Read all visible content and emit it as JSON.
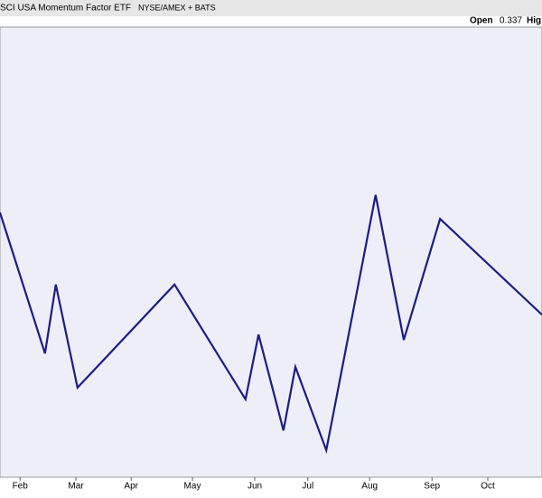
{
  "header": {
    "title": "SCI USA Momentum Factor ETF",
    "exchange": "NYSE/AMEX + BATS",
    "open_label": "Open",
    "open_value": "0.337",
    "high_label": "Hig"
  },
  "chart_data": {
    "type": "line",
    "x": [
      0,
      8.3,
      10.3,
      14.3,
      32.2,
      45.3,
      47.7,
      52.3,
      54.5,
      60.2,
      69.3,
      74.5,
      81.2,
      100
    ],
    "series": [
      {
        "color": "#1c1c84",
        "values": [
          58.8,
          27.5,
          42.8,
          19.9,
          42.8,
          17.3,
          31.7,
          10.4,
          24.5,
          6.0,
          62.7,
          30.5,
          57.4,
          36.1
        ]
      }
    ],
    "xlim": [
      0,
      100
    ],
    "ylim": [
      0,
      100
    ],
    "xticks": [
      {
        "value": 3.7,
        "label": "Feb"
      },
      {
        "value": 14,
        "label": "Mar"
      },
      {
        "value": 24.2,
        "label": "Apr"
      },
      {
        "value": 35.5,
        "label": "May"
      },
      {
        "value": 47,
        "label": "Jun"
      },
      {
        "value": 56.8,
        "label": "Jul"
      },
      {
        "value": 68.2,
        "label": "Aug"
      },
      {
        "value": 79.7,
        "label": "Sep"
      },
      {
        "value": 90,
        "label": "Oct"
      }
    ]
  }
}
